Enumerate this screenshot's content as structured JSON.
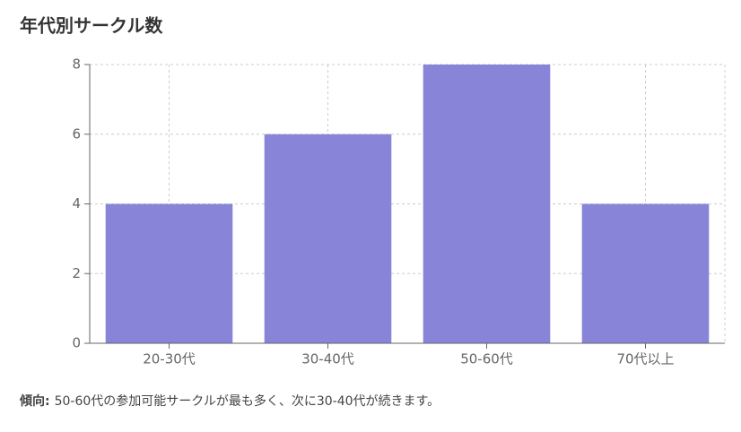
{
  "chart_data": {
    "type": "bar",
    "title": "年代別サークル数",
    "categories": [
      "20-30代",
      "30-40代",
      "50-60代",
      "70代以上"
    ],
    "values": [
      4,
      6,
      8,
      4
    ],
    "color": "#8884d8",
    "ylim": [
      0,
      8
    ],
    "yticks": [
      0,
      2,
      4,
      6,
      8
    ],
    "grid": true,
    "note_label": "傾向:",
    "note": "50-60代の参加可能サークルが最も多く、次に30-40代が続きます。"
  }
}
